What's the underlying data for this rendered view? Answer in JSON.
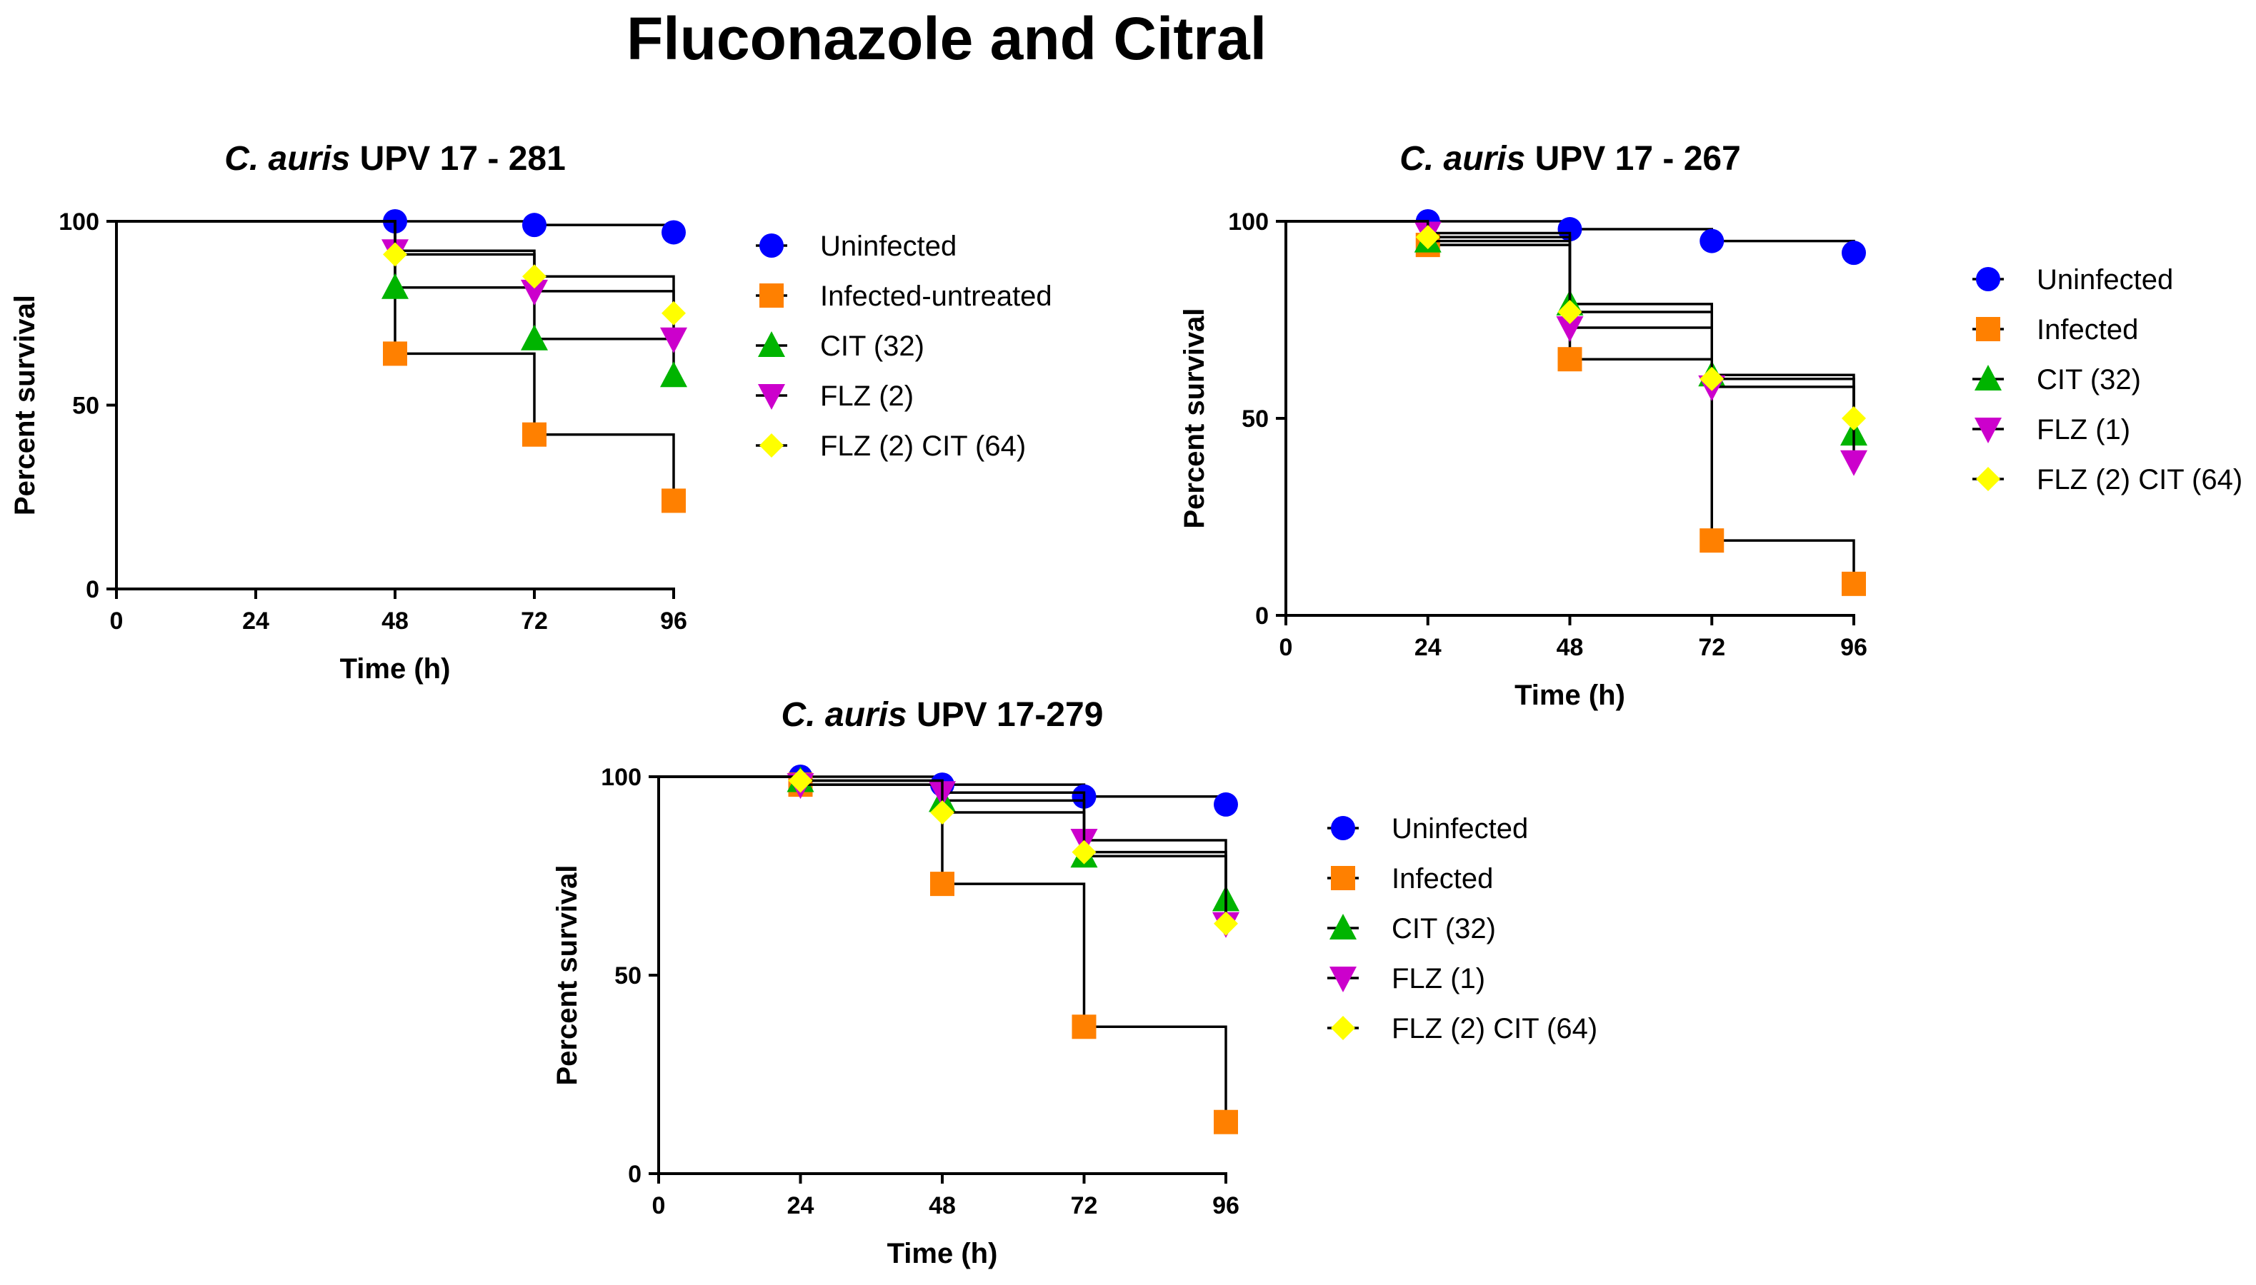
{
  "title": "Fluconazole and  Citral",
  "colors": {
    "Uninfected": "#0000ff",
    "Infected": "#ff8000",
    "CIT": "#00b400",
    "FLZ": "#cc00cc",
    "FLZCIT": "#ffff00",
    "line": "#000000"
  },
  "chart_data": [
    {
      "type": "line",
      "title_italic": "C. auris",
      "title_rest": " UPV 17 - 281",
      "xlabel": "Time (h)",
      "ylabel": "Percent survival",
      "xlim": [
        0,
        96
      ],
      "ylim": [
        0,
        100
      ],
      "xticks": [
        "0",
        "24",
        "48",
        "72",
        "96"
      ],
      "yticks": [
        "0",
        "50",
        "100"
      ],
      "x": [
        0,
        48,
        72,
        96
      ],
      "series": [
        {
          "name": "Uninfected",
          "key": "Uninfected",
          "marker": "circle",
          "values": [
            100,
            100,
            99,
            97
          ]
        },
        {
          "name": "Infected-untreated",
          "key": "Infected",
          "marker": "square",
          "values": [
            100,
            64,
            42,
            24
          ]
        },
        {
          "name": "CIT (32)",
          "key": "CIT",
          "marker": "triangle-up",
          "values": [
            100,
            82,
            68,
            58
          ]
        },
        {
          "name": "FLZ (2)",
          "key": "FLZ",
          "marker": "triangle-down",
          "values": [
            100,
            92,
            81,
            68
          ]
        },
        {
          "name": "FLZ (2) CIT (64)",
          "key": "FLZCIT",
          "marker": "diamond",
          "values": [
            100,
            91,
            85,
            75
          ]
        }
      ]
    },
    {
      "type": "line",
      "title_italic": "C. auris",
      "title_rest": " UPV 17 - 267",
      "xlabel": "Time (h)",
      "ylabel": "Percent survival",
      "xlim": [
        0,
        96
      ],
      "ylim": [
        0,
        100
      ],
      "xticks": [
        "0",
        "24",
        "48",
        "72",
        "96"
      ],
      "yticks": [
        "0",
        "50",
        "100"
      ],
      "x": [
        0,
        24,
        48,
        72,
        96
      ],
      "series": [
        {
          "name": "Uninfected",
          "key": "Uninfected",
          "marker": "circle",
          "values": [
            100,
            100,
            98,
            95,
            92
          ]
        },
        {
          "name": "Infected",
          "key": "Infected",
          "marker": "square",
          "values": [
            100,
            94,
            65,
            19,
            8
          ]
        },
        {
          "name": "CIT (32)",
          "key": "CIT",
          "marker": "triangle-up",
          "values": [
            100,
            95,
            79,
            61,
            46
          ]
        },
        {
          "name": "FLZ (1)",
          "key": "FLZ",
          "marker": "triangle-down",
          "values": [
            100,
            97,
            73,
            58,
            39
          ]
        },
        {
          "name": "FLZ (2) CIT (64)",
          "key": "FLZCIT",
          "marker": "diamond",
          "values": [
            100,
            96,
            77,
            60,
            50
          ]
        }
      ]
    },
    {
      "type": "line",
      "title_italic": "C. auris",
      "title_rest": " UPV 17-279",
      "xlabel": "Time (h)",
      "ylabel": "Percent survival",
      "xlim": [
        0,
        96
      ],
      "ylim": [
        0,
        100
      ],
      "xticks": [
        "0",
        "24",
        "48",
        "72",
        "96"
      ],
      "yticks": [
        "0",
        "50",
        "100"
      ],
      "x": [
        0,
        24,
        48,
        72,
        96
      ],
      "series": [
        {
          "name": "Uninfected",
          "key": "Uninfected",
          "marker": "circle",
          "values": [
            100,
            100,
            98,
            95,
            93
          ]
        },
        {
          "name": "Infected",
          "key": "Infected",
          "marker": "square",
          "values": [
            100,
            98,
            73,
            37,
            13
          ]
        },
        {
          "name": "CIT (32)",
          "key": "CIT",
          "marker": "triangle-up",
          "values": [
            100,
            99,
            94,
            80,
            69
          ]
        },
        {
          "name": "FLZ (1)",
          "key": "FLZ",
          "marker": "triangle-down",
          "values": [
            100,
            98,
            96,
            84,
            63
          ]
        },
        {
          "name": "FLZ (2) CIT (64)",
          "key": "FLZCIT",
          "marker": "diamond",
          "values": [
            100,
            99,
            91,
            81,
            63
          ]
        }
      ]
    }
  ]
}
